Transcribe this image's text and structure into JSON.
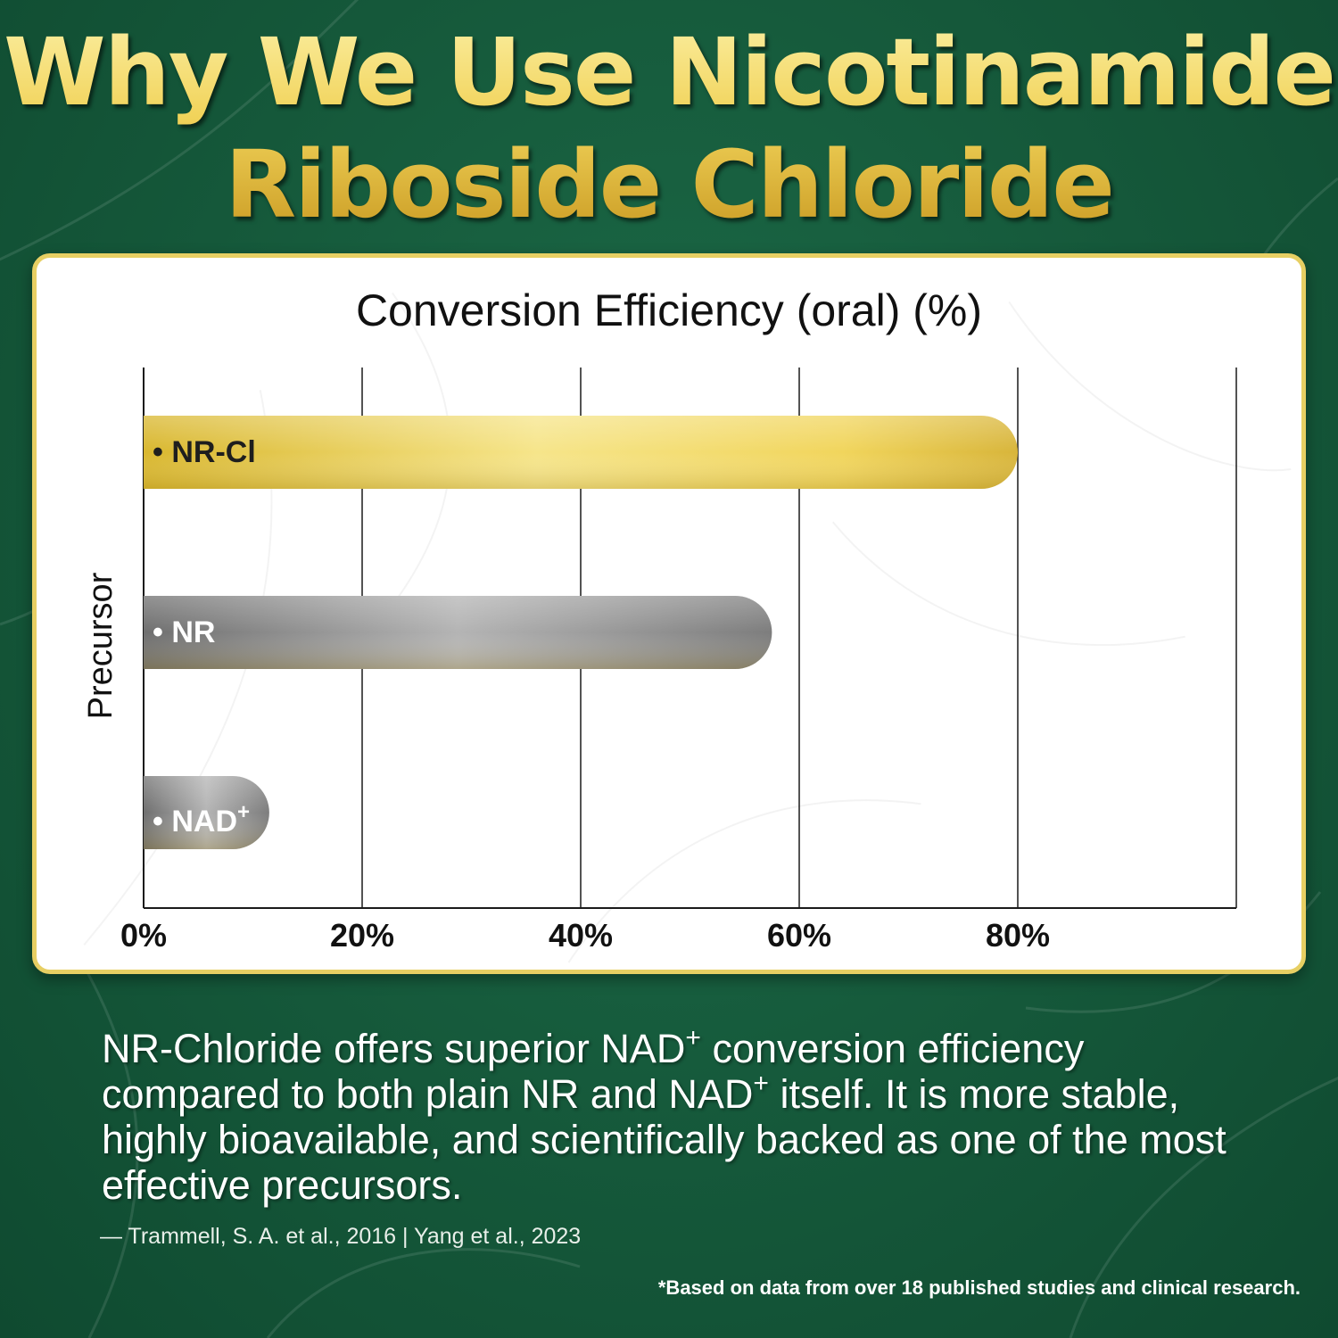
{
  "headline": {
    "line1": "Why We Use Nicotinamide",
    "line2": "Riboside Chloride"
  },
  "chart_data": {
    "type": "bar",
    "orientation": "horizontal",
    "title": "Conversion Efficiency (oral) (%)",
    "xlabel": "",
    "ylabel": "Precursor",
    "xlim": [
      0,
      100
    ],
    "x_ticks": [
      "0%",
      "20%",
      "40%",
      "60%",
      "80%"
    ],
    "x_tick_values": [
      0,
      20,
      40,
      60,
      80
    ],
    "categories": [
      "NR-Cl",
      "NR",
      "NAD+"
    ],
    "values": [
      80,
      57.5,
      11.5
    ],
    "category_labels": [
      {
        "bullet": "•",
        "name": "NR-Cl",
        "sup": ""
      },
      {
        "bullet": "•",
        "name": "NR",
        "sup": ""
      },
      {
        "bullet": "•",
        "name": "NAD",
        "sup": "+"
      }
    ],
    "bar_colors": [
      "#e3c64a",
      "#8e8e8e",
      "#8a8a8a"
    ],
    "grid": true,
    "legend": "none"
  },
  "body": {
    "p1": "NR-Chloride offers superior NAD",
    "sup1": "+",
    "p2": "conversion efficiency compared to both plain NR and NAD",
    "sup2": "+",
    "p3": "itself. It is more stable, highly bioavailable, and scientifically backed as one of the most effective precursors."
  },
  "citation": "—  Trammell, S. A. et al., 2016 | Yang et al., 2023",
  "footnote": "*Based on data from over 18 published studies and clinical research.",
  "colors": {
    "background": "#15583a",
    "gold": "#f1d35a",
    "card_border": "#e7cf63"
  }
}
